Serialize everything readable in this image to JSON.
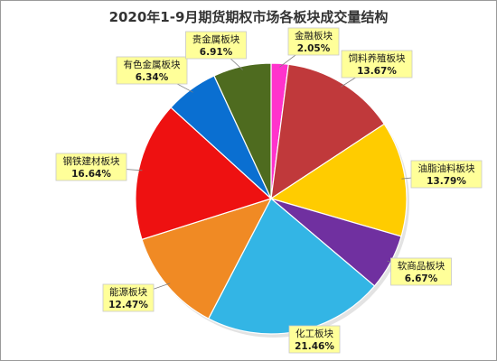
{
  "chart_data": {
    "type": "pie",
    "title": "2020年1-9月期货期权市场各板块成交量结构",
    "start_angle_deg": 0,
    "direction": "clockwise",
    "legend": "none",
    "slices": [
      {
        "name": "金融板块",
        "value": 2.05,
        "label": "2.05%",
        "color": "#ff33cc"
      },
      {
        "name": "饲料养殖板块",
        "value": 13.67,
        "label": "13.67%",
        "color": "#c0393b"
      },
      {
        "name": "油脂油料板块",
        "value": 13.79,
        "label": "13.79%",
        "color": "#ffcc00"
      },
      {
        "name": "软商品板块",
        "value": 6.67,
        "label": "6.67%",
        "color": "#7030a0"
      },
      {
        "name": "化工板块",
        "value": 21.46,
        "label": "21.46%",
        "color": "#33b5e5"
      },
      {
        "name": "能源板块",
        "value": 12.47,
        "label": "12.47%",
        "color": "#f08a24"
      },
      {
        "name": "钢铁建材板块",
        "value": 16.64,
        "label": "16.64%",
        "color": "#ee1111"
      },
      {
        "name": "有色金属板块",
        "value": 6.34,
        "label": "6.34%",
        "color": "#0a6fd1"
      },
      {
        "name": "贵金属板块",
        "value": 6.91,
        "label": "6.91%",
        "color": "#4e6b1f"
      }
    ]
  }
}
